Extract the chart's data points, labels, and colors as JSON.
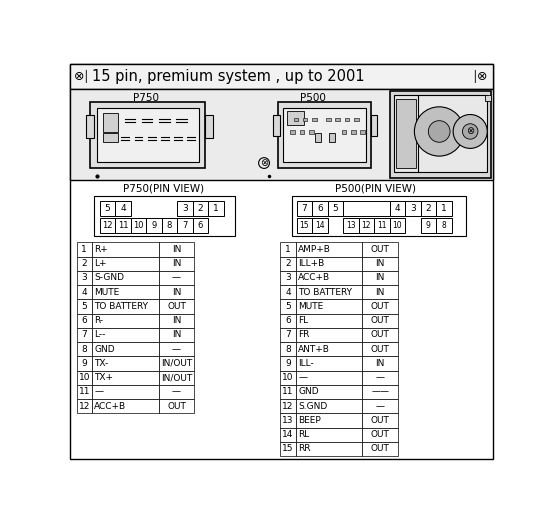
{
  "title": "15 pin, premium system , up to 2001",
  "p750_label": "P750",
  "p500_label": "P500",
  "p750_pin_view": "P750(PIN VIEW)",
  "p500_pin_view": "P500(PIN VIEW)",
  "p750_rows": [
    [
      "1",
      "R+",
      "IN"
    ],
    [
      "2",
      "L+",
      "IN"
    ],
    [
      "3",
      "S-GND",
      "—"
    ],
    [
      "4",
      "MUTE",
      "IN"
    ],
    [
      "5",
      "TO BATTERY",
      "OUT"
    ],
    [
      "6",
      "R-",
      "IN"
    ],
    [
      "7",
      "L--",
      "IN"
    ],
    [
      "8",
      "GND",
      "—"
    ],
    [
      "9",
      "TX-",
      "IN/OUT"
    ],
    [
      "10",
      "TX+",
      "IN/OUT"
    ],
    [
      "11",
      "—",
      "—"
    ],
    [
      "12",
      "ACC+B",
      "OUT"
    ]
  ],
  "p500_rows": [
    [
      "1",
      "AMP+B",
      "OUT"
    ],
    [
      "2",
      "ILL+B",
      "IN"
    ],
    [
      "3",
      "ACC+B",
      "IN"
    ],
    [
      "4",
      "TO BATTERY",
      "IN"
    ],
    [
      "5",
      "MUTE",
      "OUT"
    ],
    [
      "6",
      "FL",
      "OUT"
    ],
    [
      "7",
      "FR",
      "OUT"
    ],
    [
      "8",
      "ANT+B",
      "OUT"
    ],
    [
      "9",
      "ILL-",
      "IN"
    ],
    [
      "10",
      "—",
      "—"
    ],
    [
      "11",
      "GND",
      "——"
    ],
    [
      "12",
      "S.GND",
      "—"
    ],
    [
      "13",
      "BEEP",
      "OUT"
    ],
    [
      "14",
      "RL",
      "OUT"
    ],
    [
      "15",
      "RR",
      "OUT"
    ]
  ],
  "p750_top_pins": [
    "5",
    "4",
    "",
    "",
    "",
    "3",
    "2",
    "1"
  ],
  "p750_bot_pins": [
    "12",
    "11",
    "10",
    "9",
    "8",
    "7",
    "6"
  ],
  "p500_top_pins": [
    "7",
    "6",
    "5",
    "",
    "",
    "4",
    "3",
    "2",
    "1"
  ],
  "p500_bot_pins": [
    "15",
    "14",
    "",
    "13",
    "12",
    "11",
    "10",
    "",
    "9",
    "8"
  ]
}
